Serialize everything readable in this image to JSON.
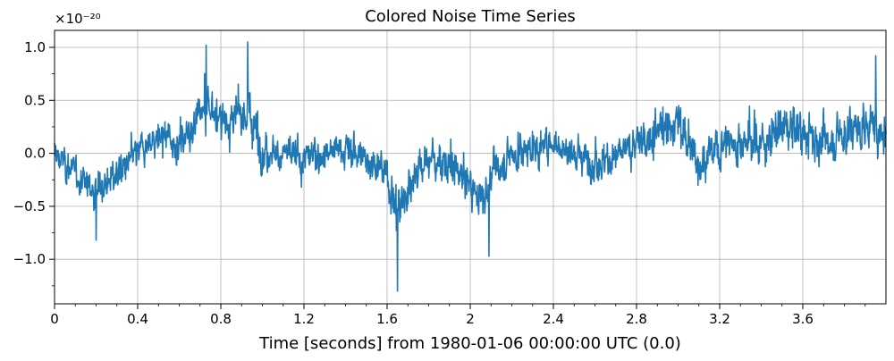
{
  "chart_data": {
    "type": "line",
    "title": "Colored Noise Time Series",
    "xlabel": "Time [seconds] from 1980-01-06 00:00:00 UTC (0.0)",
    "ylabel": "",
    "y_exponent_label": "×10⁻²⁰",
    "xlim": [
      0,
      4.0
    ],
    "ylim": [
      -1.42,
      1.16
    ],
    "x_ticks": [
      0,
      0.4,
      0.8,
      1.2,
      1.6,
      2.0,
      2.4,
      2.8,
      3.2,
      3.6
    ],
    "x_tick_labels": [
      "0",
      "0.4",
      "0.8",
      "1.2",
      "1.6",
      "2",
      "2.4",
      "2.8",
      "3.2",
      "3.6"
    ],
    "y_ticks": [
      -1.0,
      -0.5,
      0.0,
      0.5,
      1.0
    ],
    "y_tick_labels": [
      "−1.0",
      "−0.5",
      "0.0",
      "0.5",
      "1.0"
    ],
    "grid": true,
    "series": [
      {
        "color": "#1f77b4",
        "envelope_x": [
          0.0,
          0.1,
          0.2,
          0.3,
          0.4,
          0.5,
          0.6,
          0.7,
          0.75,
          0.8,
          0.9,
          0.93,
          1.0,
          1.1,
          1.2,
          1.3,
          1.4,
          1.5,
          1.6,
          1.65,
          1.7,
          1.8,
          1.9,
          2.0,
          2.05,
          2.1,
          2.2,
          2.3,
          2.4,
          2.5,
          2.6,
          2.7,
          2.8,
          2.9,
          3.0,
          3.1,
          3.2,
          3.3,
          3.4,
          3.5,
          3.6,
          3.7,
          3.8,
          3.9,
          4.0
        ],
        "envelope_center": [
          0.0,
          -0.2,
          -0.35,
          -0.2,
          0.0,
          0.15,
          0.1,
          0.35,
          0.45,
          0.3,
          0.35,
          0.4,
          0.05,
          0.0,
          -0.05,
          0.0,
          0.05,
          -0.05,
          -0.2,
          -0.55,
          -0.3,
          -0.05,
          -0.1,
          -0.3,
          -0.45,
          -0.2,
          0.0,
          0.05,
          0.1,
          0.0,
          -0.05,
          -0.05,
          0.1,
          0.2,
          0.3,
          -0.1,
          0.05,
          0.15,
          0.1,
          0.25,
          0.2,
          0.1,
          0.2,
          0.25,
          0.2
        ],
        "envelope_amplitude": [
          0.25,
          0.3,
          0.35,
          0.3,
          0.3,
          0.3,
          0.32,
          0.4,
          0.45,
          0.4,
          0.4,
          0.55,
          0.35,
          0.32,
          0.35,
          0.3,
          0.32,
          0.32,
          0.35,
          0.55,
          0.4,
          0.35,
          0.35,
          0.38,
          0.4,
          0.35,
          0.35,
          0.35,
          0.35,
          0.32,
          0.35,
          0.32,
          0.35,
          0.4,
          0.42,
          0.35,
          0.35,
          0.45,
          0.4,
          0.4,
          0.38,
          0.38,
          0.4,
          0.42,
          0.4
        ],
        "extremes": [
          {
            "x": 0.73,
            "y": 1.02
          },
          {
            "x": 0.93,
            "y": 1.05
          },
          {
            "x": 1.65,
            "y": -1.3
          },
          {
            "x": 0.2,
            "y": -0.82
          },
          {
            "x": 2.09,
            "y": -0.97
          },
          {
            "x": 3.95,
            "y": 0.92
          }
        ]
      }
    ]
  }
}
